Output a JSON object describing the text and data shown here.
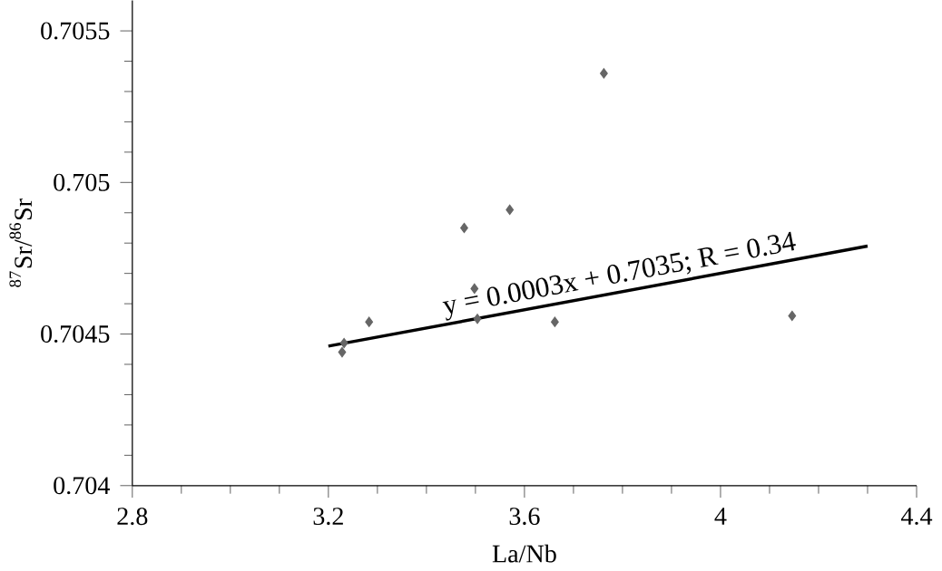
{
  "chart_data": {
    "type": "scatter",
    "xlabel": "La/Nb",
    "ylabel": "$^{87}$Sr/$^{86}$Sr",
    "xlim": [
      2.8,
      4.4
    ],
    "xticks": [
      2.8,
      3.2,
      3.6,
      4,
      4.4
    ],
    "ylim": [
      0.704,
      0.7056
    ],
    "yticks": [
      0.704,
      0.7045,
      0.705,
      0.7055
    ],
    "marker": "diamond",
    "annotations": [
      "y = 0.0003x + 0.7035; R = 0.34"
    ],
    "series": [
      {
        "color": "#666666",
        "x": [
          3.228,
          3.232,
          3.283,
          3.477,
          3.498,
          3.504,
          3.57,
          3.662,
          3.762,
          4.146
        ],
        "values": [
          0.70444,
          0.70447,
          0.70454,
          0.70485,
          0.70465,
          0.70455,
          0.70491,
          0.70454,
          0.70536,
          0.70456
        ]
      },
      {
        "type": "line",
        "marker": "none",
        "color": "#000000",
        "x": [
          3.2,
          4.3
        ],
        "values": [
          0.70446,
          0.70479
        ]
      }
    ]
  }
}
